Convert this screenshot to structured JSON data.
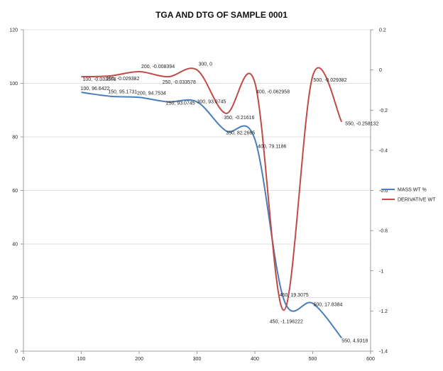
{
  "chart_data": {
    "type": "line",
    "title": "TGA AND DTG OF SAMPLE 0001",
    "xlim": [
      0,
      600
    ],
    "x_ticks": [
      0,
      100,
      200,
      300,
      400,
      500,
      600
    ],
    "ylim_left": [
      0,
      120
    ],
    "y_left_ticks": [
      0,
      20,
      40,
      60,
      80,
      100,
      120
    ],
    "ylim_right": [
      -1.4,
      0.2
    ],
    "y_right_ticks": [
      -1.4,
      -1.2,
      -1,
      -0.8,
      -0.6,
      -0.4,
      -0.2,
      0,
      0.2
    ],
    "grid": "horizontal",
    "legend_position": "right",
    "series": [
      {
        "name": "MASS WT %",
        "axis": "left",
        "color": "#4a7ebb",
        "x": [
          100,
          150,
          200,
          250,
          300,
          350,
          400,
          450,
          500,
          550
        ],
        "y": [
          96.6422,
          95.1731,
          94.7534,
          93.0745,
          93.0745,
          82.2665,
          79.1186,
          19.3075,
          17.8384,
          4.9318
        ],
        "labels": [
          "100, 96.6422",
          "150, 95.1731",
          "200, 94.7534",
          "250, 93.0745",
          "300, 93.0745",
          "350, 82.2665",
          "400, 79.1186",
          "450, 19.3075",
          "500, 17.8384",
          "550, 4.9318"
        ]
      },
      {
        "name": "DERIVATIVE WT",
        "axis": "right",
        "color": "#be4b48",
        "x": [
          100,
          150,
          200,
          250,
          300,
          350,
          400,
          450,
          500,
          550
        ],
        "y": [
          -0.033578,
          -0.029382,
          -0.008394,
          -0.033578,
          0,
          -0.21616,
          -0.062958,
          -1.196222,
          -0.029382,
          -0.258132
        ],
        "labels": [
          "100, -0.033578",
          "150, -0.029382",
          "200, -0.008394",
          "250, -0.033578",
          "300, 0",
          "350, -0.21616",
          "400, -0.062958",
          "450, -1.196222",
          "500, -0.029382",
          "550, -0.258132"
        ]
      }
    ]
  }
}
